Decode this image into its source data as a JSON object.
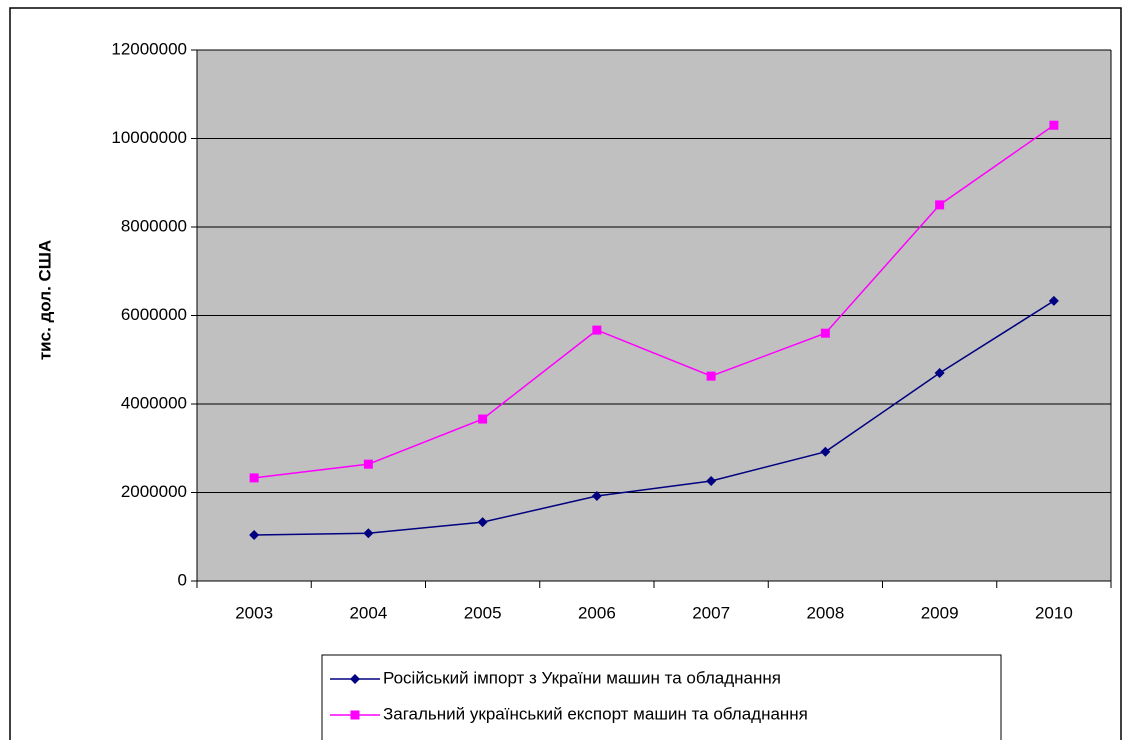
{
  "chart_data": {
    "type": "line",
    "y_label": "тис. дол. США",
    "categories": [
      "2003",
      "2004",
      "2005",
      "2006",
      "2007",
      "2008",
      "2009",
      "2010"
    ],
    "series": [
      {
        "name": "Російський імпорт з України машин та обладнання",
        "color": "#000080",
        "marker": "diamond",
        "values": [
          1040000,
          1080000,
          1330000,
          1920000,
          2260000,
          2920000,
          4700000,
          6330000
        ]
      },
      {
        "name": "Загальний український експорт машин та обладнання",
        "color": "#ff00ff",
        "marker": "square",
        "values": [
          2330000,
          2640000,
          3660000,
          5670000,
          4630000,
          5600000,
          8500000,
          10300000
        ]
      }
    ],
    "ylim": [
      0,
      12000000
    ],
    "yticks": [
      0,
      2000000,
      4000000,
      6000000,
      8000000,
      10000000,
      12000000
    ],
    "grid": true,
    "legend": "bottom",
    "plot_background": "#c0c0c0"
  }
}
